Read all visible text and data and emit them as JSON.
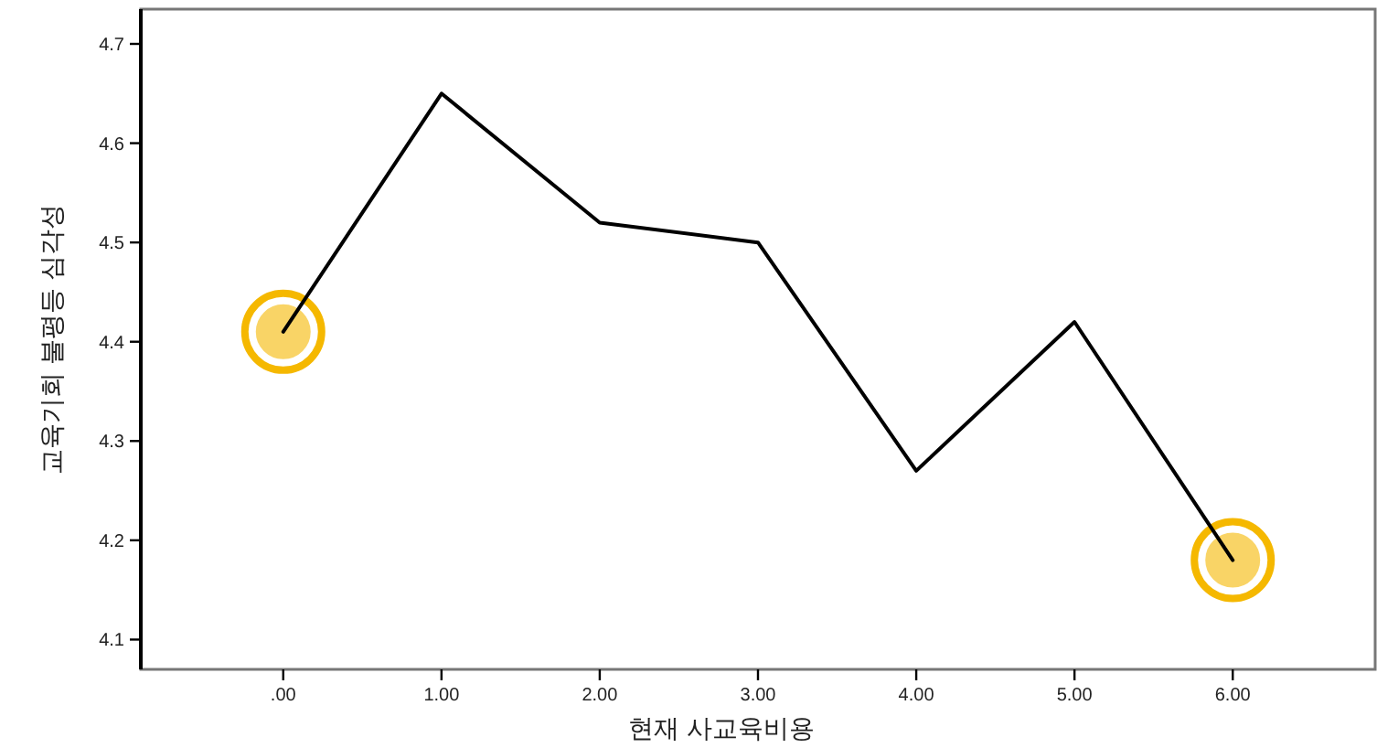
{
  "chart_data": {
    "type": "line",
    "xlabel": "현재 사교육비용",
    "ylabel": "교육기회 불평등 심각성",
    "x": [
      0,
      1,
      2,
      3,
      4,
      5,
      6
    ],
    "series": [
      {
        "color": "#000000",
        "values": [
          4.41,
          4.65,
          4.52,
          4.5,
          4.27,
          4.42,
          4.18
        ]
      },
      {
        "type": "scatter",
        "marker": "circle",
        "color": "#f5b800",
        "x": [
          0,
          6
        ],
        "values": [
          4.41,
          4.18
        ]
      }
    ],
    "xlim": [
      -0.9,
      6.9
    ],
    "xticks": [
      {
        "value": 0,
        "label": ".00"
      },
      {
        "value": 1,
        "label": "1.00"
      },
      {
        "value": 2,
        "label": "2.00"
      },
      {
        "value": 3,
        "label": "3.00"
      },
      {
        "value": 4,
        "label": "4.00"
      },
      {
        "value": 5,
        "label": "5.00"
      },
      {
        "value": 6,
        "label": "6.00"
      }
    ],
    "ylim": [
      4.07,
      4.735
    ],
    "yticks": [
      4.1,
      4.2,
      4.3,
      4.4,
      4.5,
      4.6,
      4.7
    ],
    "grid": false
  }
}
